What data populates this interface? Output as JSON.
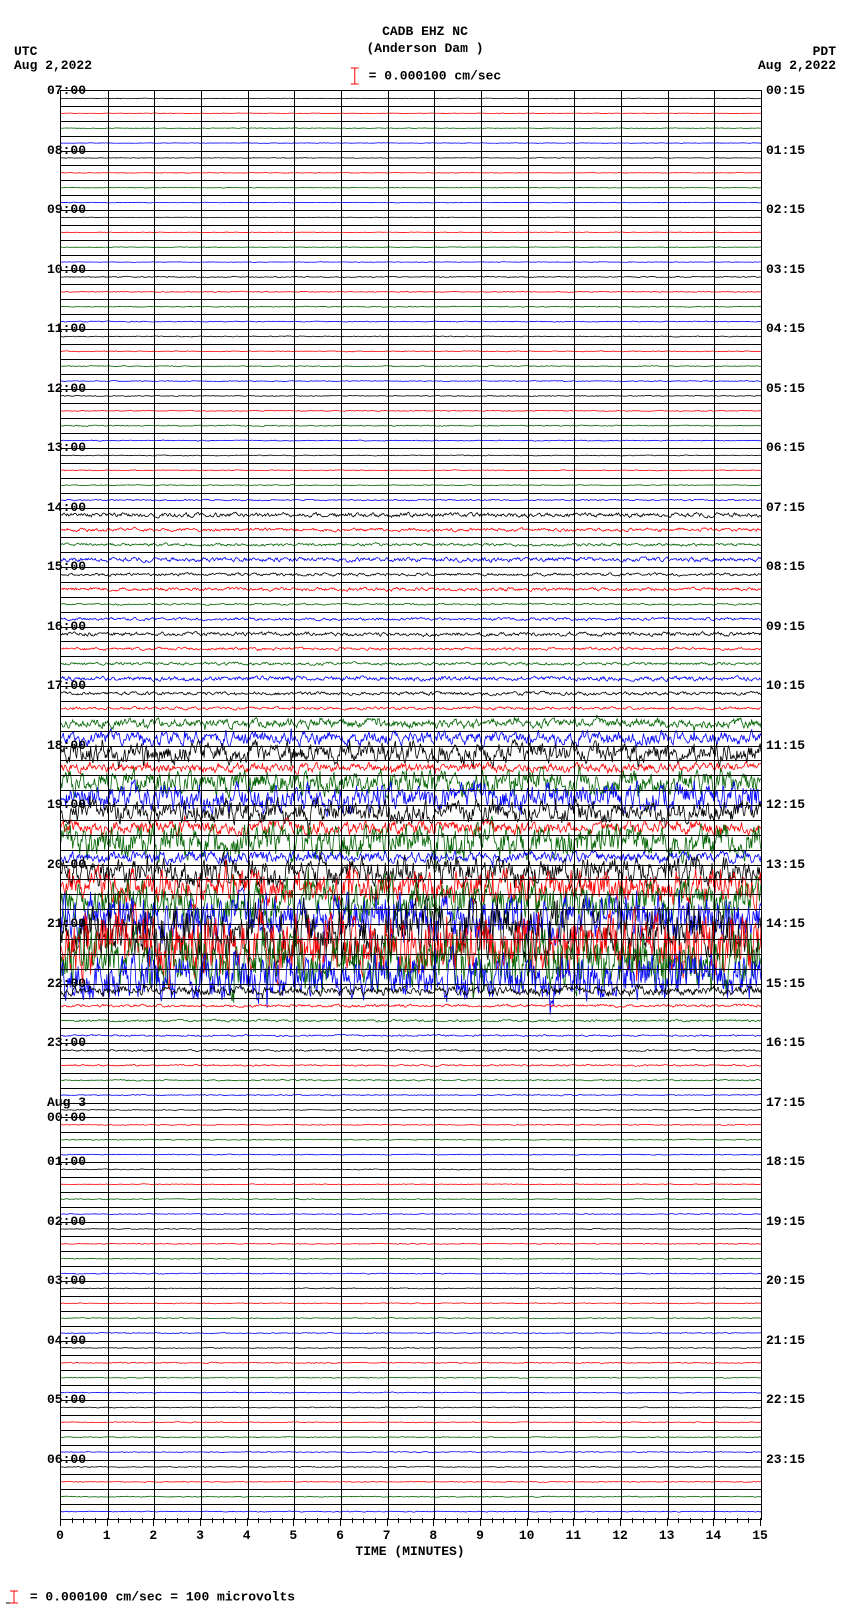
{
  "header": {
    "station": "CADB EHZ NC",
    "location": "(Anderson Dam )",
    "scale_text": "= 0.000100 cm/sec"
  },
  "tz_left": "UTC",
  "tz_right": "PDT",
  "date_left": "Aug 2,2022",
  "date_right": "Aug 2,2022",
  "footer": "= 0.000100 cm/sec =    100 microvolts",
  "xaxis": {
    "title": "TIME (MINUTES)",
    "ticks": [
      "0",
      "1",
      "2",
      "3",
      "4",
      "5",
      "6",
      "7",
      "8",
      "9",
      "10",
      "11",
      "12",
      "13",
      "14",
      "15"
    ]
  },
  "colors": {
    "trace_cycle": [
      "#000000",
      "#ff0000",
      "#006400",
      "#0000ff"
    ],
    "grid": "#000000",
    "bg": "#ffffff"
  },
  "plot": {
    "n_lines": 96,
    "left_labels": [
      {
        "line": 0,
        "text": "07:00"
      },
      {
        "line": 4,
        "text": "08:00"
      },
      {
        "line": 8,
        "text": "09:00"
      },
      {
        "line": 12,
        "text": "10:00"
      },
      {
        "line": 16,
        "text": "11:00"
      },
      {
        "line": 20,
        "text": "12:00"
      },
      {
        "line": 24,
        "text": "13:00"
      },
      {
        "line": 28,
        "text": "14:00"
      },
      {
        "line": 32,
        "text": "15:00"
      },
      {
        "line": 36,
        "text": "16:00"
      },
      {
        "line": 40,
        "text": "17:00"
      },
      {
        "line": 44,
        "text": "18:00"
      },
      {
        "line": 48,
        "text": "19:00"
      },
      {
        "line": 52,
        "text": "20:00"
      },
      {
        "line": 56,
        "text": "21:00"
      },
      {
        "line": 60,
        "text": "22:00"
      },
      {
        "line": 64,
        "text": "23:00"
      },
      {
        "line": 68,
        "text": "Aug 3\n00:00"
      },
      {
        "line": 72,
        "text": "01:00"
      },
      {
        "line": 76,
        "text": "02:00"
      },
      {
        "line": 80,
        "text": "03:00"
      },
      {
        "line": 84,
        "text": "04:00"
      },
      {
        "line": 88,
        "text": "05:00"
      },
      {
        "line": 92,
        "text": "06:00"
      }
    ],
    "right_labels": [
      {
        "line": 0,
        "text": "00:15"
      },
      {
        "line": 4,
        "text": "01:15"
      },
      {
        "line": 8,
        "text": "02:15"
      },
      {
        "line": 12,
        "text": "03:15"
      },
      {
        "line": 16,
        "text": "04:15"
      },
      {
        "line": 20,
        "text": "05:15"
      },
      {
        "line": 24,
        "text": "06:15"
      },
      {
        "line": 28,
        "text": "07:15"
      },
      {
        "line": 32,
        "text": "08:15"
      },
      {
        "line": 36,
        "text": "09:15"
      },
      {
        "line": 40,
        "text": "10:15"
      },
      {
        "line": 44,
        "text": "11:15"
      },
      {
        "line": 48,
        "text": "12:15"
      },
      {
        "line": 52,
        "text": "13:15"
      },
      {
        "line": 56,
        "text": "14:15"
      },
      {
        "line": 60,
        "text": "15:15"
      },
      {
        "line": 64,
        "text": "16:15"
      },
      {
        "line": 68,
        "text": "17:15"
      },
      {
        "line": 72,
        "text": "18:15"
      },
      {
        "line": 76,
        "text": "19:15"
      },
      {
        "line": 80,
        "text": "20:15"
      },
      {
        "line": 84,
        "text": "21:15"
      },
      {
        "line": 88,
        "text": "22:15"
      },
      {
        "line": 92,
        "text": "23:15"
      }
    ],
    "trace_amplitudes": [
      0.5,
      0.5,
      0.5,
      0.5,
      0.5,
      0.5,
      0.5,
      0.5,
      0.5,
      0.5,
      0.5,
      0.5,
      1.0,
      0.8,
      0.8,
      0.8,
      0.8,
      0.8,
      0.8,
      0.8,
      0.8,
      0.8,
      1.0,
      0.8,
      0.8,
      0.8,
      0.8,
      1.2,
      4.0,
      3.0,
      2.5,
      4.0,
      2.5,
      3.0,
      1.5,
      2.5,
      3.5,
      2.5,
      2.5,
      4.0,
      3.0,
      2.5,
      8.0,
      12.0,
      18.0,
      8.0,
      22.0,
      25.0,
      20.0,
      12.0,
      30.0,
      10.0,
      25.0,
      30.0,
      35.0,
      40.0,
      50.0,
      55.0,
      50.0,
      40.0,
      8.0,
      2.5,
      2.0,
      1.5,
      1.5,
      1.5,
      1.2,
      1.0,
      0.8,
      0.8,
      0.8,
      0.8,
      0.8,
      0.8,
      0.8,
      0.8,
      0.8,
      0.8,
      0.8,
      0.8,
      0.8,
      0.8,
      0.8,
      0.8,
      0.8,
      1.0,
      0.8,
      0.8,
      0.8,
      0.8,
      0.8,
      0.8,
      0.8,
      0.8,
      0.8,
      0.8
    ]
  }
}
